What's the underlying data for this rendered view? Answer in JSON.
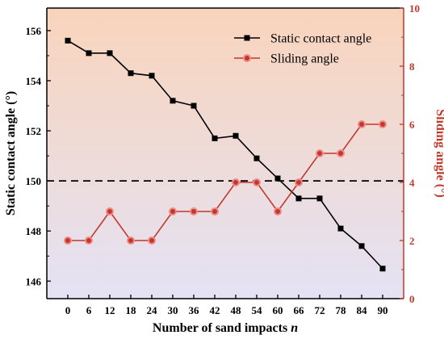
{
  "chart_data": {
    "type": "line",
    "xlabel": "Number of sand impacts",
    "xlabel_var": "n",
    "x": [
      0,
      6,
      12,
      18,
      24,
      30,
      36,
      42,
      48,
      54,
      60,
      66,
      72,
      78,
      84,
      90
    ],
    "xlim": [
      -6,
      96
    ],
    "series": [
      {
        "name": "Static contact angle",
        "axis": "left",
        "color": "#000000",
        "marker": "square",
        "values": [
          155.6,
          155.1,
          155.1,
          154.3,
          154.2,
          153.2,
          153.0,
          151.7,
          151.8,
          150.9,
          150.1,
          149.3,
          149.3,
          148.1,
          147.4,
          146.5
        ]
      },
      {
        "name": "Sliding angle",
        "axis": "right",
        "color": "#c0392b",
        "marker": "circle",
        "values": [
          2,
          2,
          3,
          2,
          2,
          3,
          3,
          3,
          4,
          4,
          3,
          4,
          5,
          5,
          6,
          6
        ]
      }
    ],
    "left_axis": {
      "label": "Static contact angle (°)",
      "ylim": [
        145.3,
        156.9
      ],
      "ticks": [
        146,
        148,
        150,
        152,
        154,
        156
      ]
    },
    "right_axis": {
      "label": "Sliding angle (°)",
      "ylim": [
        0,
        10
      ],
      "ticks": [
        0,
        2,
        4,
        6,
        8,
        10
      ],
      "color": "#c0392b"
    },
    "reference_line": {
      "axis": "left",
      "value": 150,
      "style": "dashed"
    },
    "legend_position": "top-right",
    "grid": false,
    "background_gradient": [
      "#f9d4bc",
      "#e4e2f4"
    ]
  }
}
